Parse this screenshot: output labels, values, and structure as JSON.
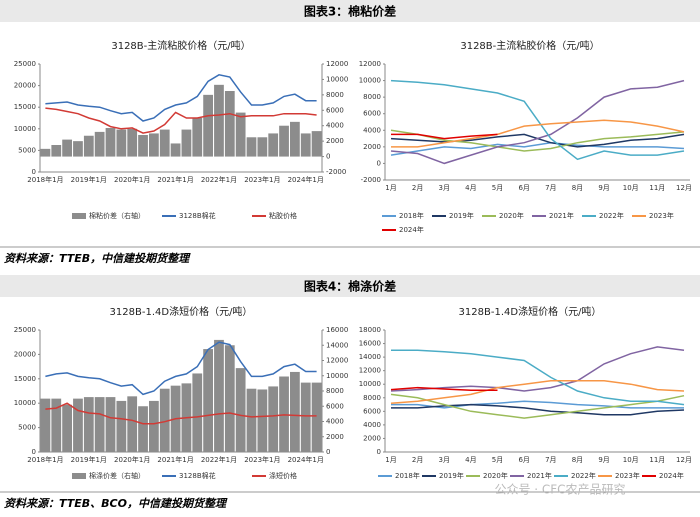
{
  "page": {
    "sections": [
      {
        "title": "图表3：棉粘价差",
        "source": "资料来源：TTEB，中信建投期货整理"
      },
      {
        "title": "图表4：棉涤价差",
        "source": "资料来源：TTEB、BCO，中信建投期货整理"
      }
    ],
    "watermark": "公众号 · CFC农产品研究"
  },
  "chart_data": [
    {
      "type": "combo",
      "title": "3128B-主流粘胶价格（元/吨）",
      "categories": [
        "2018年1月",
        null,
        null,
        null,
        "2019年1月",
        null,
        null,
        null,
        "2020年1月",
        null,
        null,
        null,
        "2021年1月",
        null,
        null,
        null,
        "2022年1月",
        null,
        null,
        null,
        "2023年1月",
        null,
        null,
        null,
        "2024年1月",
        null
      ],
      "ylim": [
        0,
        25000
      ],
      "yticks": [
        0,
        5000,
        10000,
        15000,
        20000,
        25000
      ],
      "y2lim": [
        -2000,
        12000
      ],
      "y2ticks": [
        -2000,
        0,
        2000,
        4000,
        6000,
        8000,
        10000,
        12000
      ],
      "series": [
        {
          "name": "棉粘价差（右轴）",
          "type": "bar",
          "axis": "y2",
          "color": "#8c8c8c",
          "values": [
            1000,
            1500,
            2200,
            2000,
            2700,
            3200,
            3700,
            3500,
            3600,
            2800,
            3000,
            3500,
            1700,
            3500,
            5000,
            8000,
            9300,
            8500,
            5700,
            2500,
            2500,
            3000,
            4000,
            4500,
            3000,
            3300
          ]
        },
        {
          "name": "3128B棉花",
          "color": "#3a6fb7",
          "values": [
            15800,
            16000,
            16200,
            15500,
            15200,
            15000,
            14200,
            13500,
            13800,
            11800,
            12500,
            14500,
            15500,
            16000,
            17500,
            21000,
            22500,
            22000,
            18500,
            15500,
            15500,
            16000,
            17500,
            18000,
            16500,
            16500
          ]
        },
        {
          "name": "粘胶价格",
          "color": "#d23a35",
          "values": [
            14800,
            14500,
            14000,
            13500,
            12500,
            11800,
            10500,
            10000,
            10200,
            9000,
            9500,
            11000,
            13800,
            12500,
            12500,
            13000,
            13200,
            13500,
            12800,
            13000,
            13000,
            13000,
            13500,
            13500,
            13500,
            13200
          ]
        }
      ]
    },
    {
      "type": "line",
      "title": "3128B-主流粘胶价格（元/吨）",
      "categories": [
        "1月",
        "2月",
        "3月",
        "4月",
        "5月",
        "6月",
        "7月",
        "8月",
        "9月",
        "10月",
        "11月",
        "12月"
      ],
      "ylim": [
        -2000,
        12000
      ],
      "yticks": [
        -2000,
        0,
        2000,
        4000,
        6000,
        8000,
        10000,
        12000
      ],
      "series": [
        {
          "name": "2018年",
          "color": "#5b9bd5",
          "values": [
            1000,
            1500,
            2000,
            1800,
            2300,
            2000,
            2500,
            2200,
            2000,
            2000,
            2000,
            1800
          ]
        },
        {
          "name": "2019年",
          "color": "#1f3864",
          "values": [
            3000,
            2800,
            2600,
            2800,
            3200,
            3500,
            2500,
            2000,
            2300,
            2800,
            3000,
            3500
          ]
        },
        {
          "name": "2020年",
          "color": "#9bbb59",
          "values": [
            4000,
            3500,
            2800,
            2500,
            2000,
            1500,
            1800,
            2500,
            3000,
            3200,
            3500,
            3800
          ]
        },
        {
          "name": "2021年",
          "color": "#8064a2",
          "values": [
            1500,
            1200,
            0,
            1000,
            2000,
            2500,
            3500,
            5500,
            8000,
            9000,
            9200,
            10000
          ]
        },
        {
          "name": "2022年",
          "color": "#4bacc6",
          "values": [
            10000,
            9800,
            9500,
            9000,
            8500,
            7500,
            3000,
            500,
            1500,
            1000,
            1000,
            1500
          ]
        },
        {
          "name": "2023年",
          "color": "#f79646",
          "values": [
            2000,
            2000,
            2500,
            3000,
            3500,
            4500,
            4800,
            5000,
            5200,
            5000,
            4500,
            3800
          ]
        },
        {
          "name": "2024年",
          "color": "#e00000",
          "values": [
            3500,
            3500,
            3000,
            3300,
            3500,
            null,
            null,
            null,
            null,
            null,
            null,
            null
          ]
        }
      ]
    },
    {
      "type": "combo",
      "title": "3128B-1.4D涤短价格（元/吨）",
      "categories": [
        "2018年1月",
        null,
        null,
        null,
        "2019年1月",
        null,
        null,
        null,
        "2020年1月",
        null,
        null,
        null,
        "2021年1月",
        null,
        null,
        null,
        "2022年1月",
        null,
        null,
        null,
        "2023年1月",
        null,
        null,
        null,
        "2024年1月",
        null
      ],
      "ylim": [
        0,
        25000
      ],
      "yticks": [
        0,
        5000,
        10000,
        15000,
        20000,
        25000
      ],
      "y2lim": [
        0,
        16000
      ],
      "y2ticks": [
        0,
        2000,
        4000,
        6000,
        8000,
        10000,
        12000,
        14000,
        16000
      ],
      "series": [
        {
          "name": "棉涤价差（右轴）",
          "type": "bar",
          "axis": "y2",
          "color": "#8c8c8c",
          "values": [
            7000,
            7000,
            6200,
            7000,
            7200,
            7200,
            7200,
            6700,
            7300,
            6000,
            6700,
            8300,
            8700,
            9000,
            10300,
            13500,
            14700,
            14000,
            11000,
            8300,
            8200,
            8600,
            9900,
            10500,
            9100,
            9100
          ]
        },
        {
          "name": "3128B棉花",
          "color": "#3a6fb7",
          "values": [
            15500,
            16000,
            16200,
            15500,
            15200,
            15000,
            14200,
            13500,
            13800,
            11800,
            12500,
            14500,
            15500,
            16000,
            17500,
            21000,
            22500,
            22000,
            18500,
            15500,
            15500,
            16000,
            17500,
            18000,
            16500,
            16500
          ]
        },
        {
          "name": "涤短价格",
          "color": "#d23a35",
          "values": [
            8800,
            9000,
            10000,
            8500,
            8000,
            7800,
            7000,
            6800,
            6500,
            5800,
            5800,
            6200,
            6800,
            7000,
            7200,
            7500,
            7800,
            8000,
            7500,
            7200,
            7300,
            7400,
            7600,
            7500,
            7400,
            7400
          ]
        }
      ]
    },
    {
      "type": "line",
      "title": "3128B-1.4D涤短价格（元/吨）",
      "categories": [
        "1月",
        "2月",
        "3月",
        "4月",
        "5月",
        "6月",
        "7月",
        "8月",
        "9月",
        "10月",
        "11月",
        "12月"
      ],
      "ylim": [
        0,
        18000
      ],
      "yticks": [
        0,
        2000,
        4000,
        6000,
        8000,
        10000,
        12000,
        14000,
        16000,
        18000
      ],
      "series": [
        {
          "name": "2018年",
          "color": "#5b9bd5",
          "values": [
            7000,
            7000,
            6500,
            7000,
            7200,
            7500,
            7300,
            7000,
            6800,
            6500,
            6500,
            6500
          ]
        },
        {
          "name": "2019年",
          "color": "#1f3864",
          "values": [
            6500,
            6500,
            6800,
            7000,
            6800,
            6500,
            6000,
            5800,
            5500,
            5500,
            6000,
            6200
          ]
        },
        {
          "name": "2020年",
          "color": "#9bbb59",
          "values": [
            8500,
            8000,
            7000,
            6000,
            5500,
            5000,
            5500,
            6000,
            6500,
            7000,
            7500,
            8300
          ]
        },
        {
          "name": "2021年",
          "color": "#8064a2",
          "values": [
            9000,
            9200,
            9500,
            9700,
            9500,
            9000,
            9500,
            10500,
            13000,
            14500,
            15500,
            15000
          ]
        },
        {
          "name": "2022年",
          "color": "#4bacc6",
          "values": [
            15000,
            15000,
            14800,
            14500,
            14000,
            13500,
            11000,
            9000,
            8000,
            7500,
            7500,
            7000
          ]
        },
        {
          "name": "2023年",
          "color": "#f79646",
          "values": [
            7200,
            7500,
            8000,
            8500,
            9500,
            10000,
            10500,
            10500,
            10500,
            10000,
            9200,
            9000
          ]
        },
        {
          "name": "2024年",
          "color": "#e00000",
          "values": [
            9200,
            9500,
            9300,
            9100,
            9100,
            null,
            null,
            null,
            null,
            null,
            null,
            null
          ]
        }
      ]
    }
  ]
}
